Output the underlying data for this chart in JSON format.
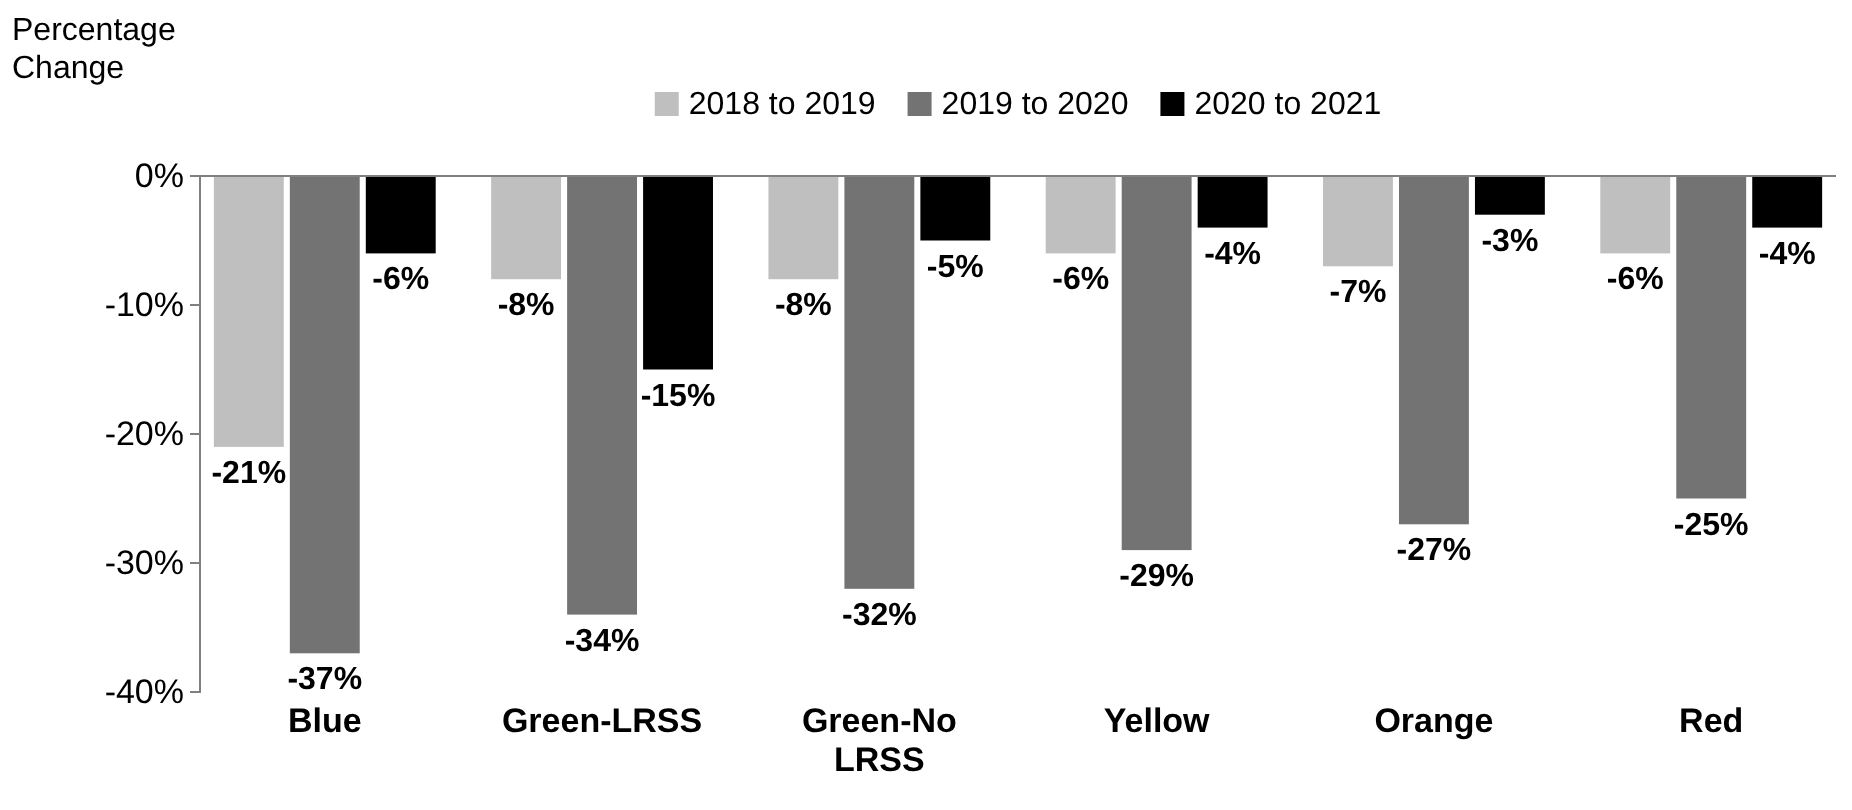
{
  "chart_data": {
    "type": "bar",
    "ylabel": "Percentage Change",
    "categories": [
      "Blue",
      "Green-LRSS",
      "Green-No LRSS",
      "Yellow",
      "Orange",
      "Red"
    ],
    "series": [
      {
        "name": "2018 to 2019",
        "color": "#bfbfbf",
        "values": [
          -21,
          -8,
          -8,
          -6,
          -7,
          -6
        ],
        "value_labels": [
          "-21%",
          "-8%",
          "-8%",
          "-6%",
          "-7%",
          "-6%"
        ]
      },
      {
        "name": "2019 to 2020",
        "color": "#737373",
        "values": [
          -37,
          -34,
          -32,
          -29,
          -27,
          -25
        ],
        "value_labels": [
          "-37%",
          "-34%",
          "-32%",
          "-29%",
          "-27%",
          "-25%"
        ]
      },
      {
        "name": "2020 to 2021",
        "color": "#000000",
        "values": [
          -6,
          -15,
          -5,
          -4,
          -3,
          -4
        ],
        "value_labels": [
          "-6%",
          "-15%",
          "-5%",
          "-4%",
          "-3%",
          "-4%"
        ]
      }
    ],
    "ylim": [
      -40,
      0
    ],
    "yticks": [
      {
        "value": 0,
        "label": "0%"
      },
      {
        "value": -10,
        "label": "-10%"
      },
      {
        "value": -20,
        "label": "-20%"
      },
      {
        "value": -30,
        "label": "-30%"
      },
      {
        "value": -40,
        "label": "-40%"
      }
    ],
    "legend": "top",
    "grid": false
  }
}
